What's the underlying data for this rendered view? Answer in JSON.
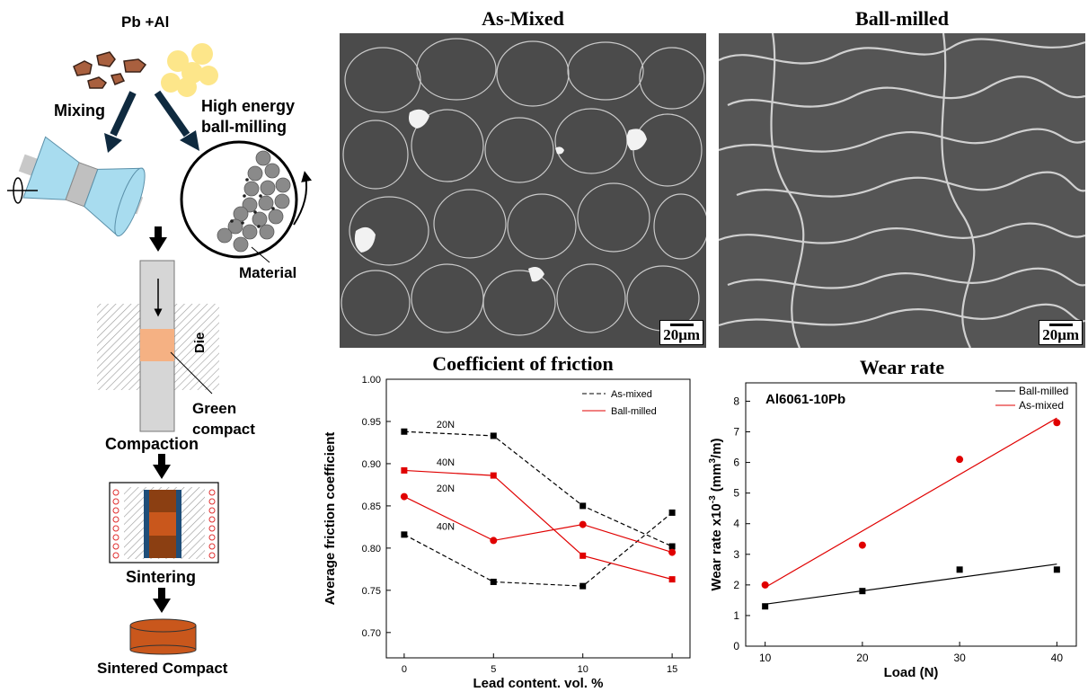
{
  "process": {
    "powders_label": "Pb +Al",
    "mixing_label": "Mixing",
    "ballmill_label_1": "High energy",
    "ballmill_label_2": "ball-milling",
    "material_label": "Material",
    "die_label": "Die",
    "green_compact_1": "Green",
    "green_compact_2": "compact",
    "compaction_label": "Compaction",
    "sintering_label": "Sintering",
    "sintered_label": "Sintered Compact",
    "colors": {
      "lead": "#a9603f",
      "aluminum": "#fde68a",
      "mixer": "#a8dcef",
      "green": "#f5b183",
      "sintered": "#c9571c",
      "die_wall": "#1f4e79"
    }
  },
  "micrographs": {
    "as_mixed_title": "As-Mixed",
    "ball_milled_title": "Ball-milled",
    "scale_label": "20μm"
  },
  "friction": {
    "title": "Coefficient of friction",
    "chart_data": {
      "type": "line",
      "title": "Coefficient of friction",
      "xlabel": "Lead content, vol. %",
      "ylabel": "Average friction coefficient",
      "xlim": [
        -1,
        16
      ],
      "ylim": [
        0.67,
        1.0
      ],
      "xticks": [
        0,
        5,
        10,
        15
      ],
      "yticks": [
        0.7,
        0.75,
        0.8,
        0.85,
        0.9,
        0.95,
        1.0
      ],
      "legend": [
        "As-mixed",
        "Ball-milled"
      ],
      "legend_position": "top-right",
      "x": [
        0,
        5,
        10,
        15
      ],
      "series": [
        {
          "name": "As-mixed",
          "label": "20N",
          "values": [
            0.938,
            0.933,
            0.85,
            0.802
          ],
          "color": "#000000",
          "dashed": true,
          "marker": "square"
        },
        {
          "name": "As-mixed",
          "label": "40N",
          "values": [
            0.816,
            0.76,
            0.755,
            0.842
          ],
          "color": "#000000",
          "dashed": true,
          "marker": "square"
        },
        {
          "name": "Ball-milled",
          "label": "20N",
          "values": [
            0.892,
            0.886,
            0.791,
            0.763
          ],
          "color": "#e00000",
          "dashed": false,
          "marker": "square"
        },
        {
          "name": "Ball-milled",
          "label": "40N",
          "values": [
            0.861,
            0.809,
            0.828,
            0.795
          ],
          "color": "#e00000",
          "dashed": false,
          "marker": "circle"
        }
      ]
    }
  },
  "wear": {
    "title": "Wear rate",
    "chart_data": {
      "type": "scatter",
      "title": "Wear rate",
      "annotation": "Al6061-10Pb",
      "xlabel": "Load (N)",
      "ylabel_main": "Wear rate x10",
      "ylabel_sup": "-3",
      "ylabel_unit": " (mm",
      "ylabel_unit_sup": "3",
      "ylabel_end": "/m)",
      "xlim": [
        8,
        42
      ],
      "ylim": [
        0,
        8.6
      ],
      "xticks": [
        10,
        20,
        30,
        40
      ],
      "yticks": [
        0,
        1,
        2,
        3,
        4,
        5,
        6,
        7,
        8
      ],
      "legend": [
        "Ball-milled",
        "As-mixed"
      ],
      "legend_position": "top-right",
      "x": [
        10,
        20,
        30,
        40
      ],
      "series": [
        {
          "name": "Ball-milled",
          "values": [
            1.3,
            1.8,
            2.5,
            2.5
          ],
          "color": "#000000",
          "marker": "square",
          "fit": [
            1.37,
            2.68
          ]
        },
        {
          "name": "As-mixed",
          "values": [
            2.0,
            3.3,
            6.1,
            7.3
          ],
          "color": "#e00000",
          "marker": "circle",
          "fit": [
            1.92,
            7.45
          ]
        }
      ]
    }
  }
}
